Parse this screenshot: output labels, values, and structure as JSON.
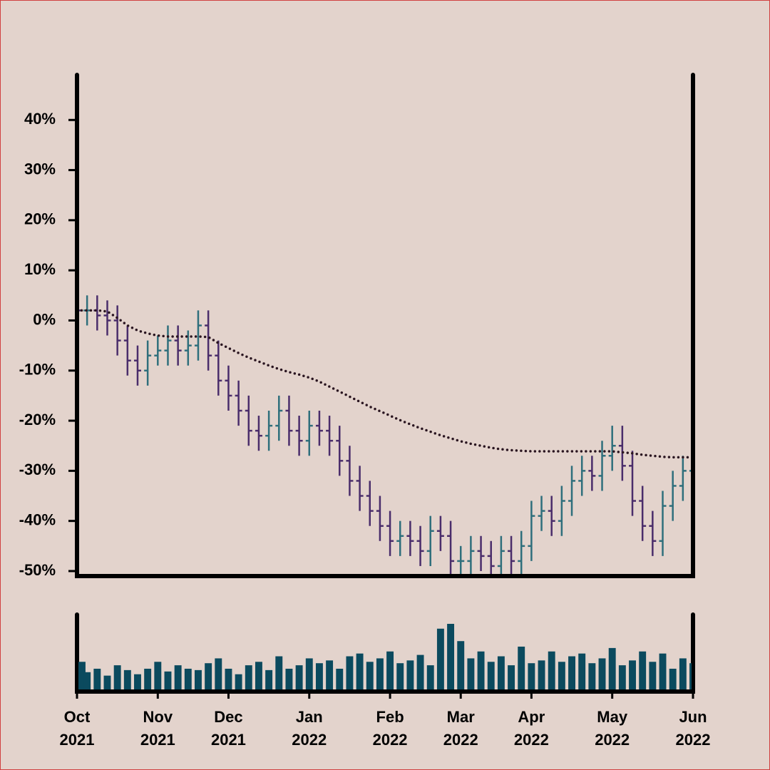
{
  "chart_data": {
    "type": "ohlc",
    "categories": [
      "Oct\n2021",
      null,
      null,
      null,
      null,
      null,
      null,
      null,
      "Nov\n2021",
      null,
      null,
      null,
      null,
      null,
      null,
      "Dec\n2021",
      null,
      null,
      null,
      null,
      null,
      null,
      null,
      "Jan\n2022",
      null,
      null,
      null,
      null,
      null,
      null,
      null,
      "Feb\n2022",
      null,
      null,
      null,
      null,
      null,
      null,
      "Mar\n2022",
      null,
      null,
      null,
      null,
      null,
      null,
      "Apr\n2022",
      null,
      null,
      null,
      null,
      null,
      null,
      null,
      "May\n2022",
      null,
      null,
      null,
      null,
      null,
      null,
      null,
      "Jun\n2022"
    ],
    "open": [
      3,
      2,
      2,
      1,
      0,
      -4,
      -8,
      -10,
      -7,
      -6,
      -4,
      -6,
      -5,
      -1,
      -7,
      -12,
      -15,
      -18,
      -22,
      -23,
      -21,
      -18,
      -22,
      -24,
      -21,
      -22,
      -24,
      -28,
      -32,
      -35,
      -38,
      -41,
      -44,
      -43,
      -44,
      -46,
      -42,
      -43,
      -48,
      -48,
      -46,
      -47,
      -49,
      -46,
      -48,
      -45,
      -39,
      -38,
      -40,
      -36,
      -32,
      -30,
      -31,
      -27,
      -25,
      -29,
      -36,
      -41,
      -44,
      -37,
      -33,
      -30
    ],
    "high": [
      6,
      5,
      5,
      4,
      3,
      -1,
      -5,
      -4,
      -3,
      -1,
      -1,
      -2,
      2,
      2,
      -4,
      -9,
      -12,
      -15,
      -19,
      -18,
      -15,
      -15,
      -19,
      -18,
      -18,
      -19,
      -21,
      -25,
      -29,
      -32,
      -35,
      -38,
      -40,
      -40,
      -41,
      -39,
      -39,
      -40,
      -45,
      -43,
      -43,
      -44,
      -43,
      -43,
      -42,
      -36,
      -35,
      -35,
      -33,
      -29,
      -27,
      -27,
      -24,
      -21,
      -21,
      -26,
      -33,
      -38,
      -34,
      -30,
      -27,
      -26
    ],
    "low": [
      -1,
      -1,
      -2,
      -3,
      -7,
      -11,
      -13,
      -13,
      -9,
      -9,
      -9,
      -9,
      -8,
      -10,
      -15,
      -18,
      -21,
      -25,
      -26,
      -26,
      -24,
      -25,
      -27,
      -27,
      -25,
      -27,
      -31,
      -35,
      -38,
      -41,
      -44,
      -47,
      -47,
      -47,
      -49,
      -49,
      -46,
      -51,
      -51,
      -51,
      -50,
      -52,
      -52,
      -51,
      -51,
      -48,
      -42,
      -43,
      -43,
      -39,
      -35,
      -34,
      -34,
      -30,
      -32,
      -39,
      -44,
      -47,
      -47,
      -40,
      -36,
      -33
    ],
    "close": [
      2,
      2,
      1,
      0,
      -4,
      -8,
      -10,
      -7,
      -6,
      -4,
      -6,
      -5,
      -1,
      -7,
      -12,
      -15,
      -18,
      -22,
      -23,
      -21,
      -18,
      -22,
      -24,
      -21,
      -22,
      -24,
      -28,
      -32,
      -35,
      -38,
      -41,
      -44,
      -43,
      -44,
      -46,
      -42,
      -43,
      -48,
      -48,
      -46,
      -47,
      -49,
      -46,
      -48,
      -45,
      -39,
      -38,
      -40,
      -36,
      -32,
      -30,
      -31,
      -27,
      -25,
      -29,
      -36,
      -41,
      -44,
      -37,
      -33,
      -30,
      -29
    ],
    "up_color": "#2f6f7c",
    "down_color": "#4a2d6b",
    "ma": {
      "color": "#2a1520",
      "values": [
        2,
        2,
        2,
        1.8,
        0.5,
        -1,
        -2,
        -2.6,
        -3,
        -3.2,
        -3.2,
        -3.2,
        -3.2,
        -3.3,
        -4.5,
        -5.5,
        -6.5,
        -7.4,
        -8.2,
        -9,
        -9.7,
        -10.3,
        -10.8,
        -11.4,
        -12.2,
        -13.2,
        -14.2,
        -15.2,
        -16.2,
        -17.2,
        -18.1,
        -19,
        -19.9,
        -20.7,
        -21.5,
        -22.2,
        -22.9,
        -23.5,
        -24.1,
        -24.6,
        -25,
        -25.4,
        -25.7,
        -25.9,
        -26,
        -26.1,
        -26.1,
        -26.1,
        -26.1,
        -26.1,
        -26.1,
        -26.1,
        -26.1,
        -26.1,
        -26.3,
        -26.5,
        -26.8,
        -27,
        -27.2,
        -27.3,
        -27.3,
        -27.3
      ]
    },
    "volume": {
      "color": "#0b4a5e",
      "values": [
        40,
        25,
        30,
        20,
        35,
        28,
        22,
        30,
        40,
        26,
        35,
        30,
        28,
        38,
        45,
        30,
        22,
        35,
        40,
        28,
        48,
        30,
        35,
        45,
        38,
        42,
        30,
        48,
        52,
        40,
        45,
        55,
        38,
        42,
        50,
        35,
        88,
        95,
        70,
        45,
        55,
        40,
        48,
        35,
        62,
        38,
        42,
        55,
        40,
        48,
        52,
        38,
        45,
        60,
        35,
        42,
        55,
        40,
        52,
        30,
        45,
        38
      ]
    },
    "ylim": [
      -51,
      49
    ],
    "yticks": [
      {
        "value": -50,
        "label": "-50%"
      },
      {
        "value": -40,
        "label": "-40%"
      },
      {
        "value": -30,
        "label": "-30%"
      },
      {
        "value": -20,
        "label": "-20%"
      },
      {
        "value": -10,
        "label": "-10%"
      },
      {
        "value": 0,
        "label": "0%"
      },
      {
        "value": 10,
        "label": "10%"
      },
      {
        "value": 20,
        "label": "20%"
      },
      {
        "value": 30,
        "label": "30%"
      },
      {
        "value": 40,
        "label": "40%"
      }
    ]
  }
}
